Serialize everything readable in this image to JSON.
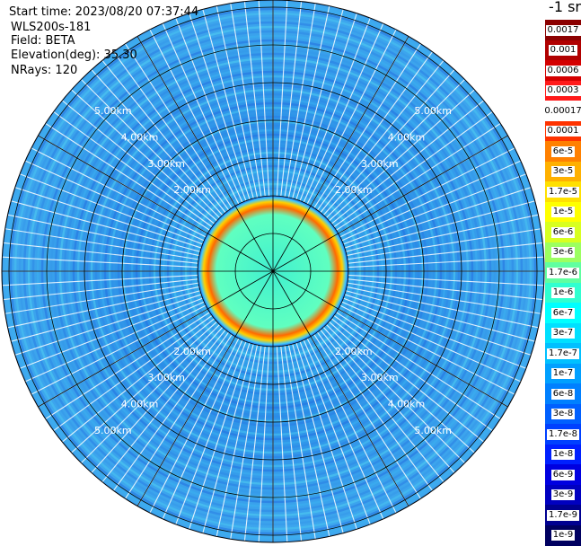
{
  "header": {
    "start_time": "Start time: 2023/08/20 07:37:44",
    "instrument": "WLS200s-181",
    "field": "Field: BETA",
    "elevation": "Elevation(deg): 35.30",
    "nrays": "NRays: 120"
  },
  "colorbar": {
    "title": "-1 sr",
    "labels": [
      "0.0017",
      "0.001",
      "0.0006",
      "0.0003",
      "0.00017",
      "0.0001",
      "6e-5",
      "3e-5",
      "1.7e-5",
      "1e-5",
      "6e-6",
      "3e-6",
      "1.7e-6",
      "1e-6",
      "6e-7",
      "3e-7",
      "1.7e-7",
      "1e-7",
      "6e-8",
      "3e-8",
      "1.7e-8",
      "1e-8",
      "6e-9",
      "3e-9",
      "1.7e-9",
      "1e-9"
    ],
    "colors": [
      "#8b0000",
      "#b00000",
      "#d40000",
      "#ff1a1a",
      "#ffffff",
      "#ff3300",
      "#ff8000",
      "#ffb000",
      "#ffe000",
      "#ffff00",
      "#d8ff20",
      "#9cff60",
      "#60ffa0",
      "#30ffd0",
      "#00ffff",
      "#00e0ff",
      "#00c0ff",
      "#00a0ff",
      "#0080ff",
      "#0060ff",
      "#0040ff",
      "#0020ff",
      "#0000e0",
      "#0000c0",
      "#000090",
      "#000060"
    ]
  },
  "range_labels": [
    "2.00km",
    "3.00km",
    "4.00km",
    "5.00km"
  ]
}
